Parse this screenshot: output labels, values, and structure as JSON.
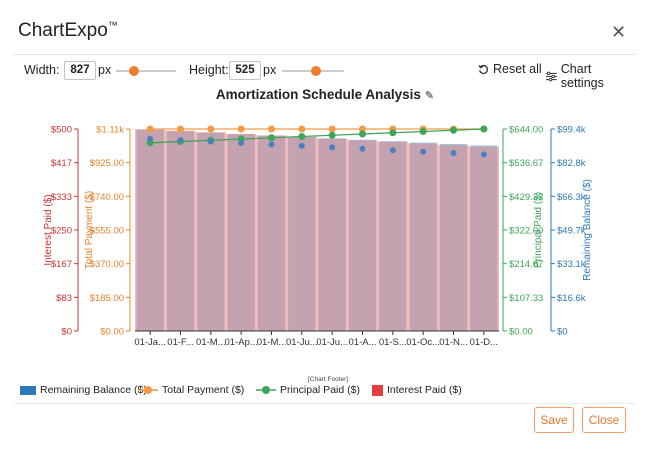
{
  "app": {
    "title": "ChartExpo",
    "tm": "™",
    "close": "✕"
  },
  "toolbar": {
    "width_label": "Width:",
    "width_value": "827",
    "width_unit": "px",
    "height_label": "Height:",
    "height_value": "525",
    "height_unit": "px",
    "reset_label": "Reset all",
    "settings_label": "Chart settings",
    "width_slider": 0.3,
    "height_slider": 0.55
  },
  "chart_title": "Amortization Schedule Analysis",
  "footer_label": "[Chart Footer]",
  "buttons": {
    "save": "Save",
    "close": "Close"
  },
  "chart_data": {
    "type": "bar",
    "categories": [
      "01-Ja...",
      "01-F...",
      "01-M...",
      "01-Ap...",
      "01-M...",
      "01-Ju...",
      "01-Ju...",
      "01-A...",
      "01-S...",
      "01-Oc...",
      "01-N...",
      "01-D..."
    ],
    "series": [
      {
        "name": "Remaining Balance ($)",
        "axis": "remaining",
        "type": "bar",
        "color": "#9fc6e0",
        "values": [
          99000,
          98300,
          97600,
          96900,
          96200,
          95500,
          94800,
          94100,
          93400,
          92700,
          92000,
          91300
        ]
      },
      {
        "name": "Total Payment ($)",
        "axis": "total",
        "type": "line",
        "color": "#f39a45",
        "values": [
          1110,
          1110,
          1110,
          1110,
          1110,
          1110,
          1110,
          1110,
          1110,
          1110,
          1110,
          1110
        ]
      },
      {
        "name": "Principal Paid ($)",
        "axis": "principal",
        "type": "line",
        "color": "#3ea55a",
        "values": [
          600,
          604,
          608,
          612,
          616,
          620,
          624,
          628,
          632,
          636,
          640,
          644
        ]
      },
      {
        "name": "Interest Paid ($)",
        "axis": "interest",
        "type": "area",
        "color": "#e38587",
        "values": [
          500,
          496,
          492,
          488,
          484,
          480,
          476,
          472,
          468,
          464,
          460,
          456
        ]
      }
    ],
    "axes": {
      "interest": {
        "label": "Interest Paid ($)",
        "color": "#cc3333",
        "ticks": [
          "$0",
          "$83",
          "$167",
          "$250",
          "$333",
          "$417",
          "$500"
        ],
        "ylim": [
          0,
          500
        ]
      },
      "total": {
        "label": "Total Payment ($)",
        "color": "#e8822d",
        "ticks": [
          "$0.00",
          "$185.00",
          "$370.00",
          "$555.00",
          "$740.00",
          "$925.00",
          "$1.11k"
        ],
        "ylim": [
          0,
          1110
        ]
      },
      "principal": {
        "label": "Principal Paid ($)",
        "color": "#3ea55a",
        "ticks": [
          "$0.00",
          "$107.33",
          "$214.67",
          "$322.00",
          "$429.33",
          "$536.67",
          "$644.00"
        ],
        "ylim": [
          0,
          644
        ]
      },
      "remaining": {
        "label": "Remaining Balance ($)",
        "color": "#2e78b7",
        "ticks": [
          "$0",
          "$16.6k",
          "$33.1k",
          "$49.7k",
          "$66.3k",
          "$82.8k",
          "$99.4k"
        ],
        "ylim": [
          0,
          99400
        ]
      }
    },
    "legend_position": "bottom"
  }
}
